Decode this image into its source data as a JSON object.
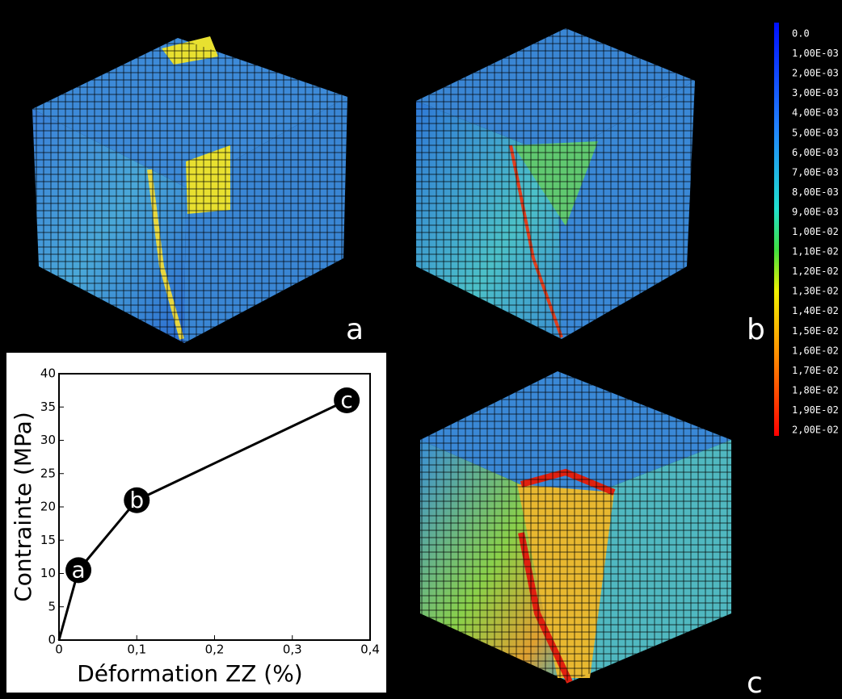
{
  "panels": [
    "a",
    "b",
    "c"
  ],
  "colorbar": {
    "labels": [
      "0.0",
      "1,00E-03",
      "2,00E-03",
      "3,00E-03",
      "4,00E-03",
      "5,00E-03",
      "6,00E-03",
      "7,00E-03",
      "8,00E-03",
      "9,00E-03",
      "1,00E-02",
      "1,10E-02",
      "1,20E-02",
      "1,30E-02",
      "1,40E-02",
      "1,50E-02",
      "1,60E-02",
      "1,70E-02",
      "1,80E-02",
      "1,90E-02",
      "2,00E-02"
    ]
  },
  "chart_data": {
    "type": "line",
    "x_label": "Déformation ZZ (%)",
    "y_label": "Contrainte (MPa)",
    "x": [
      0,
      0.025,
      0.1,
      0.37
    ],
    "values": [
      0,
      10.5,
      21,
      36
    ],
    "point_labels": [
      null,
      "a",
      "b",
      "c"
    ],
    "color": "#000000",
    "xlim": [
      0,
      0.4
    ],
    "xticks": [
      0,
      {
        "value": 0.1,
        "label": "0,1"
      },
      {
        "value": 0.2,
        "label": "0,2"
      },
      {
        "value": 0.3,
        "label": "0,3"
      },
      {
        "value": 0.4,
        "label": "0,4"
      }
    ],
    "ylim": [
      0,
      40
    ],
    "yticks": [
      0,
      5,
      10,
      15,
      20,
      25,
      30,
      35,
      40
    ]
  }
}
